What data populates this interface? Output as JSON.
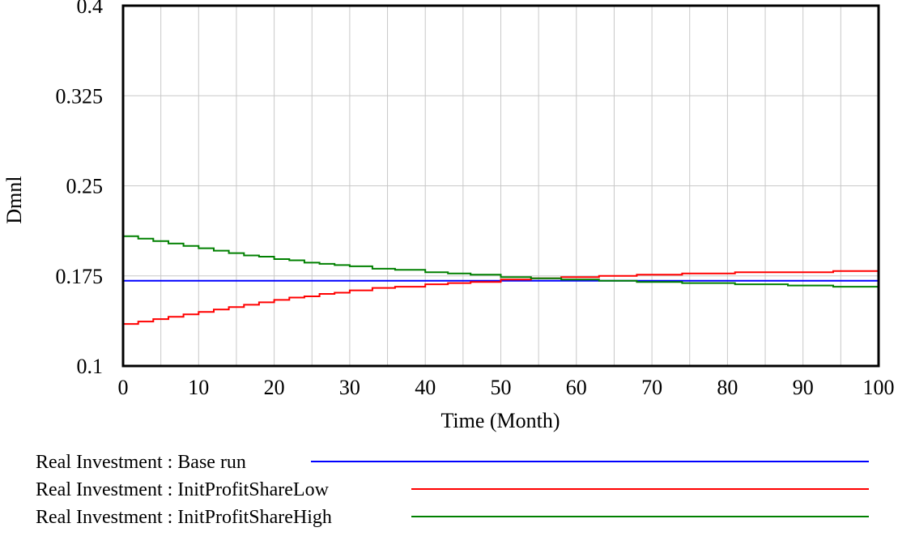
{
  "chart_data": {
    "type": "line",
    "xlabel": "Time (Month)",
    "ylabel": "Dmnl",
    "xlim": [
      0,
      100
    ],
    "ylim": [
      0.1,
      0.4
    ],
    "x_ticks": [
      "0",
      "10",
      "20",
      "30",
      "40",
      "50",
      "60",
      "70",
      "80",
      "90",
      "100"
    ],
    "y_ticks": [
      "0.1",
      "0.175",
      "0.25",
      "0.325",
      "0.4"
    ],
    "x_gridlines": [
      5,
      10,
      15,
      20,
      25,
      30,
      35,
      40,
      45,
      50,
      55,
      60,
      65,
      70,
      75,
      80,
      85,
      90,
      95
    ],
    "y_gridlines": [
      0.175,
      0.25,
      0.325
    ],
    "grid": true,
    "legend_position": "bottom",
    "series": [
      {
        "name": "Real Investment : Base run",
        "color": "#0000ff",
        "x": [
          0,
          100
        ],
        "y": [
          0.171,
          0.171
        ]
      },
      {
        "name": "Real Investment : InitProfitShareLow",
        "color": "#ff0000",
        "x": [
          0,
          2,
          4,
          6,
          8,
          10,
          12,
          14,
          16,
          18,
          20,
          22,
          24,
          26,
          28,
          30,
          33,
          36,
          40,
          43,
          46,
          50,
          54,
          58,
          63,
          68,
          74,
          81,
          88,
          94,
          100
        ],
        "y": [
          0.135,
          0.137,
          0.139,
          0.141,
          0.143,
          0.145,
          0.147,
          0.149,
          0.151,
          0.153,
          0.155,
          0.157,
          0.158,
          0.16,
          0.161,
          0.163,
          0.165,
          0.166,
          0.168,
          0.169,
          0.17,
          0.172,
          0.173,
          0.174,
          0.175,
          0.176,
          0.177,
          0.178,
          0.178,
          0.179,
          0.179
        ]
      },
      {
        "name": "Real Investment : InitProfitShareHigh",
        "color": "#008000",
        "x": [
          0,
          2,
          4,
          6,
          8,
          10,
          12,
          14,
          16,
          18,
          20,
          22,
          24,
          26,
          28,
          30,
          33,
          36,
          40,
          43,
          46,
          50,
          54,
          58,
          63,
          68,
          74,
          81,
          88,
          94,
          100
        ],
        "y": [
          0.208,
          0.206,
          0.204,
          0.202,
          0.2,
          0.198,
          0.196,
          0.194,
          0.192,
          0.191,
          0.189,
          0.188,
          0.186,
          0.185,
          0.184,
          0.183,
          0.181,
          0.18,
          0.178,
          0.177,
          0.176,
          0.174,
          0.173,
          0.172,
          0.171,
          0.17,
          0.169,
          0.168,
          0.167,
          0.166,
          0.165
        ]
      }
    ]
  }
}
